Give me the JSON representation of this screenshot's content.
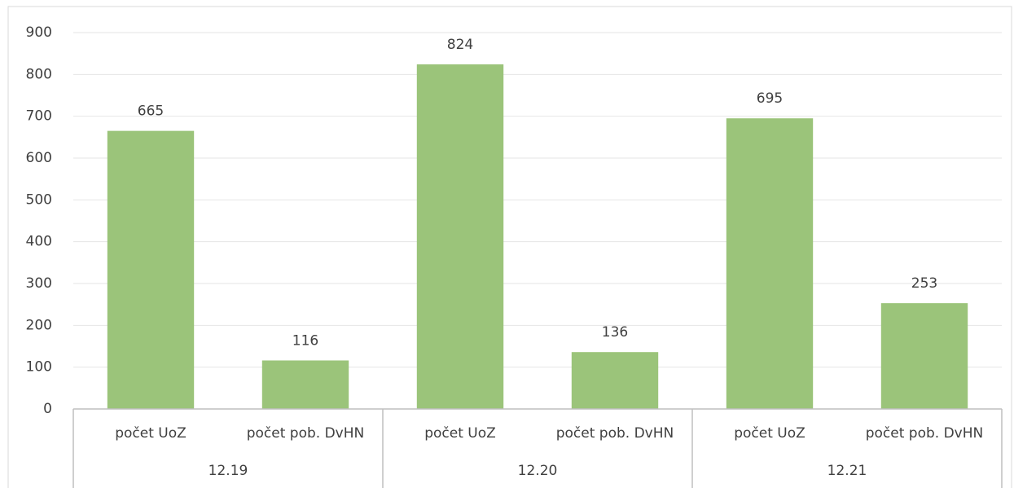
{
  "chart_data": {
    "type": "bar",
    "categories": [
      "počet UoZ",
      "počet pob. DvHN",
      "počet UoZ",
      "počet pob. DvHN",
      "počet UoZ",
      "počet pob. DvHN"
    ],
    "groups": [
      "12.19",
      "12.20",
      "12.21"
    ],
    "values": [
      665,
      116,
      824,
      136,
      695,
      253
    ],
    "color": "#9bc47a",
    "ylim": [
      0,
      900
    ],
    "yticks": [
      0,
      100,
      200,
      300,
      400,
      500,
      600,
      700,
      800,
      900
    ],
    "grid": true
  }
}
